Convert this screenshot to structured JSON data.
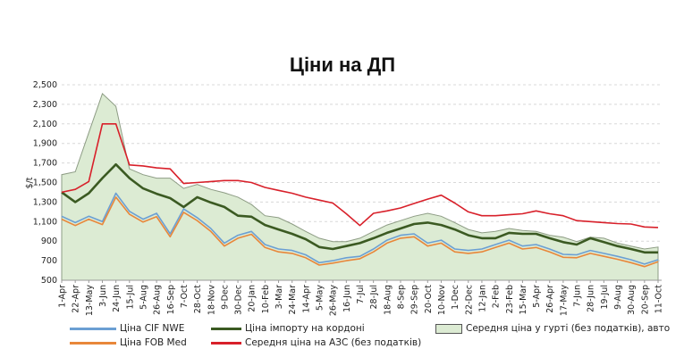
{
  "chart_data": {
    "type": "line",
    "title": "Ціни на ДП",
    "ylabel": "$/t",
    "xlabel": "",
    "ylim": [
      500,
      2500
    ],
    "yticks": [
      500,
      700,
      900,
      1100,
      1300,
      1500,
      1700,
      1900,
      2100,
      2300,
      2500
    ],
    "ytick_labels": [
      "500",
      "700",
      "900",
      "1,100",
      "1,300",
      "1,500",
      "1,700",
      "1,900",
      "2,100",
      "2,300",
      "2,500"
    ],
    "grid": "horizontal dashed",
    "legend_position": "bottom",
    "categories": [
      "1-Apr",
      "22-Apr",
      "13-May",
      "3-Jun",
      "24-Jun",
      "15-Jul",
      "5-Aug",
      "26-Aug",
      "16-Sep",
      "7-Oct",
      "28-Oct",
      "18-Nov",
      "9-Dec",
      "30-Dec",
      "20-Jan",
      "10-Feb",
      "3-Mar",
      "24-Mar",
      "14-Apr",
      "5-May",
      "26-May",
      "16-Jun",
      "7-Jul",
      "28-Jul",
      "18-Aug",
      "8-Sep",
      "29-Sep",
      "20-Oct",
      "10-Nov",
      "1-Dec",
      "22-Dec",
      "12-Jan",
      "2-Feb",
      "23-Feb",
      "15-Mar",
      "5-Apr",
      "26-Apr",
      "17-May",
      "7-Jun",
      "28-Jun",
      "19-Jul",
      "9-Aug",
      "30-Aug",
      "20-Sep",
      "11-Oct"
    ],
    "series": [
      {
        "name": "Середня ціна у гурті (без податків), авто",
        "kind": "area",
        "color": "#dcebd3",
        "stroke": "#8d9c84",
        "values": [
          1580,
          1610,
          2010,
          2410,
          2280,
          1640,
          1580,
          1545,
          1545,
          1440,
          1480,
          1430,
          1395,
          1350,
          1275,
          1160,
          1140,
          1075,
          1000,
          930,
          895,
          895,
          930,
          1000,
          1065,
          1110,
          1155,
          1185,
          1155,
          1090,
          1020,
          985,
          1000,
          1030,
          1010,
          1000,
          960,
          940,
          895,
          940,
          930,
          880,
          850,
          820,
          840
        ]
      },
      {
        "name": "Ціна CIF NWE",
        "kind": "line",
        "color": "#6b9fd3",
        "values": [
          1155,
          1090,
          1155,
          1100,
          1390,
          1205,
          1125,
          1185,
          975,
          1230,
          1140,
          1030,
          880,
          960,
          1000,
          865,
          820,
          805,
          760,
          680,
          700,
          730,
          745,
          820,
          910,
          960,
          975,
          880,
          910,
          820,
          805,
          820,
          865,
          910,
          850,
          865,
          820,
          765,
          760,
          805,
          775,
          745,
          710,
          665,
          710
        ]
      },
      {
        "name": "Ціна FOB Med",
        "kind": "line",
        "color": "#e8873a",
        "values": [
          1125,
          1060,
          1125,
          1070,
          1350,
          1175,
          1095,
          1150,
          945,
          1195,
          1110,
          1000,
          850,
          930,
          970,
          835,
          790,
          775,
          730,
          655,
          675,
          700,
          720,
          790,
          880,
          930,
          945,
          850,
          880,
          790,
          775,
          790,
          835,
          880,
          820,
          835,
          790,
          735,
          730,
          775,
          745,
          715,
          680,
          640,
          690
        ]
      },
      {
        "name": "Ціна імпорту на кордоні",
        "kind": "line",
        "color": "#3b5a22",
        "values": [
          1400,
          1300,
          1390,
          1545,
          1685,
          1545,
          1440,
          1385,
          1340,
          1250,
          1350,
          1295,
          1250,
          1160,
          1150,
          1065,
          1020,
          975,
          920,
          840,
          820,
          850,
          880,
          930,
          985,
          1030,
          1075,
          1090,
          1065,
          1020,
          960,
          930,
          930,
          985,
          975,
          975,
          930,
          890,
          865,
          930,
          890,
          850,
          820,
          785,
          785
        ]
      },
      {
        "name": "Середня ціна на АЗС (без податків)",
        "kind": "line",
        "color": "#d8202a",
        "values": [
          1400,
          1430,
          1510,
          2100,
          2100,
          1680,
          1670,
          1650,
          1640,
          1490,
          1500,
          1510,
          1520,
          1520,
          1500,
          1450,
          1420,
          1390,
          1350,
          1320,
          1290,
          1180,
          1060,
          1185,
          1210,
          1240,
          1285,
          1330,
          1370,
          1290,
          1200,
          1160,
          1160,
          1170,
          1180,
          1210,
          1180,
          1160,
          1110,
          1100,
          1090,
          1080,
          1075,
          1045,
          1040
        ]
      }
    ],
    "legend": [
      "Ціна CIF NWE",
      "Ціна імпорту на кордоні",
      "Середня ціна у гурті (без податків), авто",
      "Ціна FOB Med",
      "Середня ціна на АЗС (без податків)"
    ]
  }
}
